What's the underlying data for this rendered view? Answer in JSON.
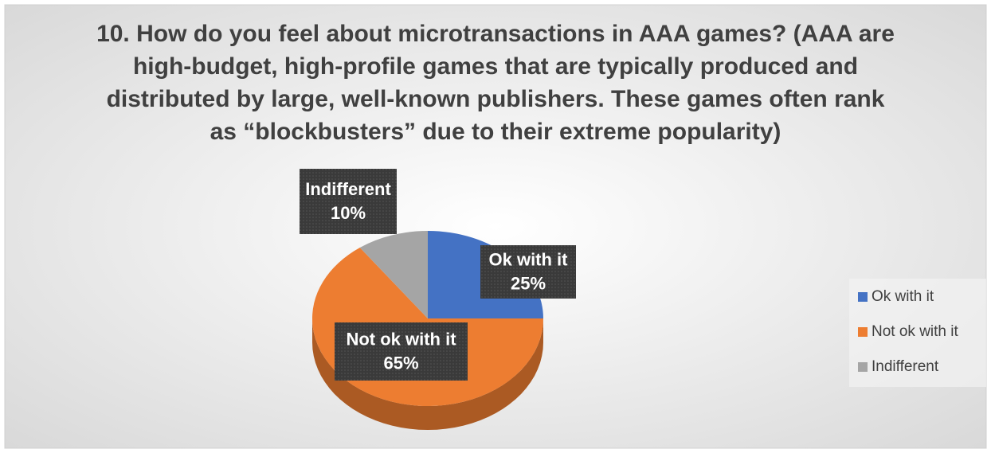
{
  "chart_data": {
    "type": "pie",
    "title": "10. How do you feel about microtransactions in AAA games? (AAA are high-budget, high-profile games that are typically produced and distributed by large, well-known publishers. These games often rank as “blockbusters” due to their extreme popularity)",
    "categories": [
      "Ok with it",
      "Not ok with it",
      "Indifferent"
    ],
    "values": [
      25,
      65,
      10
    ],
    "value_labels": [
      "25%",
      "65%",
      "10%"
    ],
    "colors": [
      "#4472c4",
      "#ed7d31",
      "#a5a5a5"
    ],
    "legend": "right"
  }
}
